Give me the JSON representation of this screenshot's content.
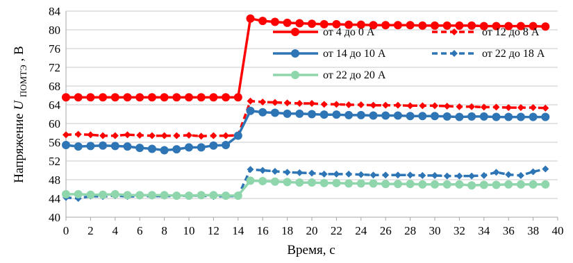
{
  "chart_data": {
    "type": "line",
    "xlabel": "Время, с",
    "ylabel_prefix": "Напряжение",
    "ylabel_symbol": "U",
    "ylabel_subscript": "ПОМТЭ",
    "ylabel_suffix": ", В",
    "xlim": [
      0,
      40
    ],
    "ylim": [
      40,
      84
    ],
    "xticks": [
      "0",
      "2",
      "4",
      "6",
      "8",
      "10",
      "12",
      "14",
      "16",
      "18",
      "20",
      "22",
      "24",
      "26",
      "28",
      "30",
      "32",
      "34",
      "36",
      "38",
      "40"
    ],
    "yticks": [
      "40",
      "44",
      "48",
      "52",
      "56",
      "60",
      "64",
      "68",
      "72",
      "76",
      "80",
      "84"
    ],
    "grid": "horizontal",
    "legend_placement": "top-right",
    "x": [
      0,
      1,
      2,
      3,
      4,
      5,
      6,
      7,
      8,
      9,
      10,
      11,
      12,
      13,
      14,
      15,
      16,
      17,
      18,
      19,
      20,
      21,
      22,
      23,
      24,
      25,
      26,
      27,
      28,
      29,
      30,
      31,
      32,
      33,
      34,
      35,
      36,
      37,
      38,
      39
    ],
    "series": [
      {
        "name": "от 4 до 0 А",
        "color": "#ff0000",
        "style": "solid",
        "marker": "circle",
        "values": [
          65.6,
          65.6,
          65.6,
          65.6,
          65.6,
          65.6,
          65.6,
          65.6,
          65.6,
          65.6,
          65.6,
          65.6,
          65.6,
          65.6,
          65.6,
          82.4,
          81.9,
          81.7,
          81.5,
          81.4,
          81.3,
          81.2,
          81.2,
          81.1,
          81.1,
          81.0,
          81.0,
          81.0,
          81.0,
          80.9,
          80.9,
          80.9,
          80.9,
          80.9,
          80.8,
          80.8,
          80.8,
          80.8,
          80.8,
          80.7
        ]
      },
      {
        "name": "от 12 до 8 А",
        "color": "#ff0000",
        "style": "dashed",
        "marker": "diamond",
        "values": [
          57.6,
          57.7,
          57.6,
          57.4,
          57.4,
          57.6,
          57.5,
          57.4,
          57.4,
          57.4,
          57.5,
          57.3,
          57.4,
          57.4,
          57.5,
          64.8,
          64.6,
          64.5,
          64.4,
          64.3,
          64.3,
          64.1,
          64.1,
          64.0,
          64.0,
          63.9,
          63.9,
          63.9,
          63.8,
          63.8,
          63.8,
          63.7,
          63.6,
          63.6,
          63.5,
          63.5,
          63.4,
          63.4,
          63.4,
          63.3
        ]
      },
      {
        "name": "от 14 до 10 А",
        "color": "#2e75b6",
        "style": "solid",
        "marker": "circle",
        "values": [
          55.4,
          55.1,
          55.2,
          55.3,
          55.2,
          55.1,
          54.8,
          54.6,
          54.3,
          54.5,
          54.9,
          54.9,
          55.3,
          55.4,
          57.4,
          62.7,
          62.4,
          62.3,
          62.1,
          62.1,
          62.0,
          61.9,
          61.9,
          61.8,
          61.8,
          61.7,
          61.7,
          61.7,
          61.6,
          61.6,
          61.6,
          61.5,
          61.4,
          61.5,
          61.5,
          61.4,
          61.4,
          61.4,
          61.4,
          61.4
        ]
      },
      {
        "name": "от 22 до 18 А",
        "color": "#2e75b6",
        "style": "dashed",
        "marker": "diamond",
        "values": [
          44.2,
          44.0,
          44.5,
          44.4,
          44.6,
          44.4,
          44.5,
          44.5,
          44.5,
          44.5,
          44.6,
          44.6,
          44.4,
          44.5,
          44.5,
          50.2,
          50.0,
          49.8,
          49.6,
          49.5,
          49.4,
          49.2,
          49.2,
          49.2,
          49.1,
          49.0,
          49.0,
          49.0,
          49.0,
          48.9,
          48.9,
          48.8,
          48.8,
          48.8,
          48.9,
          49.6,
          49.1,
          48.9,
          49.7,
          50.3
        ]
      },
      {
        "name": "от 22 до 20 А",
        "color": "#8fd6ac",
        "style": "solid",
        "marker": "circle",
        "values": [
          44.9,
          44.9,
          44.8,
          44.8,
          44.9,
          44.7,
          44.7,
          44.7,
          44.7,
          44.6,
          44.6,
          44.7,
          44.7,
          44.6,
          44.6,
          47.8,
          47.7,
          47.6,
          47.5,
          47.4,
          47.4,
          47.3,
          47.3,
          47.2,
          47.2,
          47.2,
          47.1,
          47.1,
          47.1,
          47.0,
          47.0,
          47.0,
          47.0,
          46.8,
          46.9,
          46.9,
          47.0,
          47.0,
          47.0,
          47.0
        ]
      }
    ]
  }
}
